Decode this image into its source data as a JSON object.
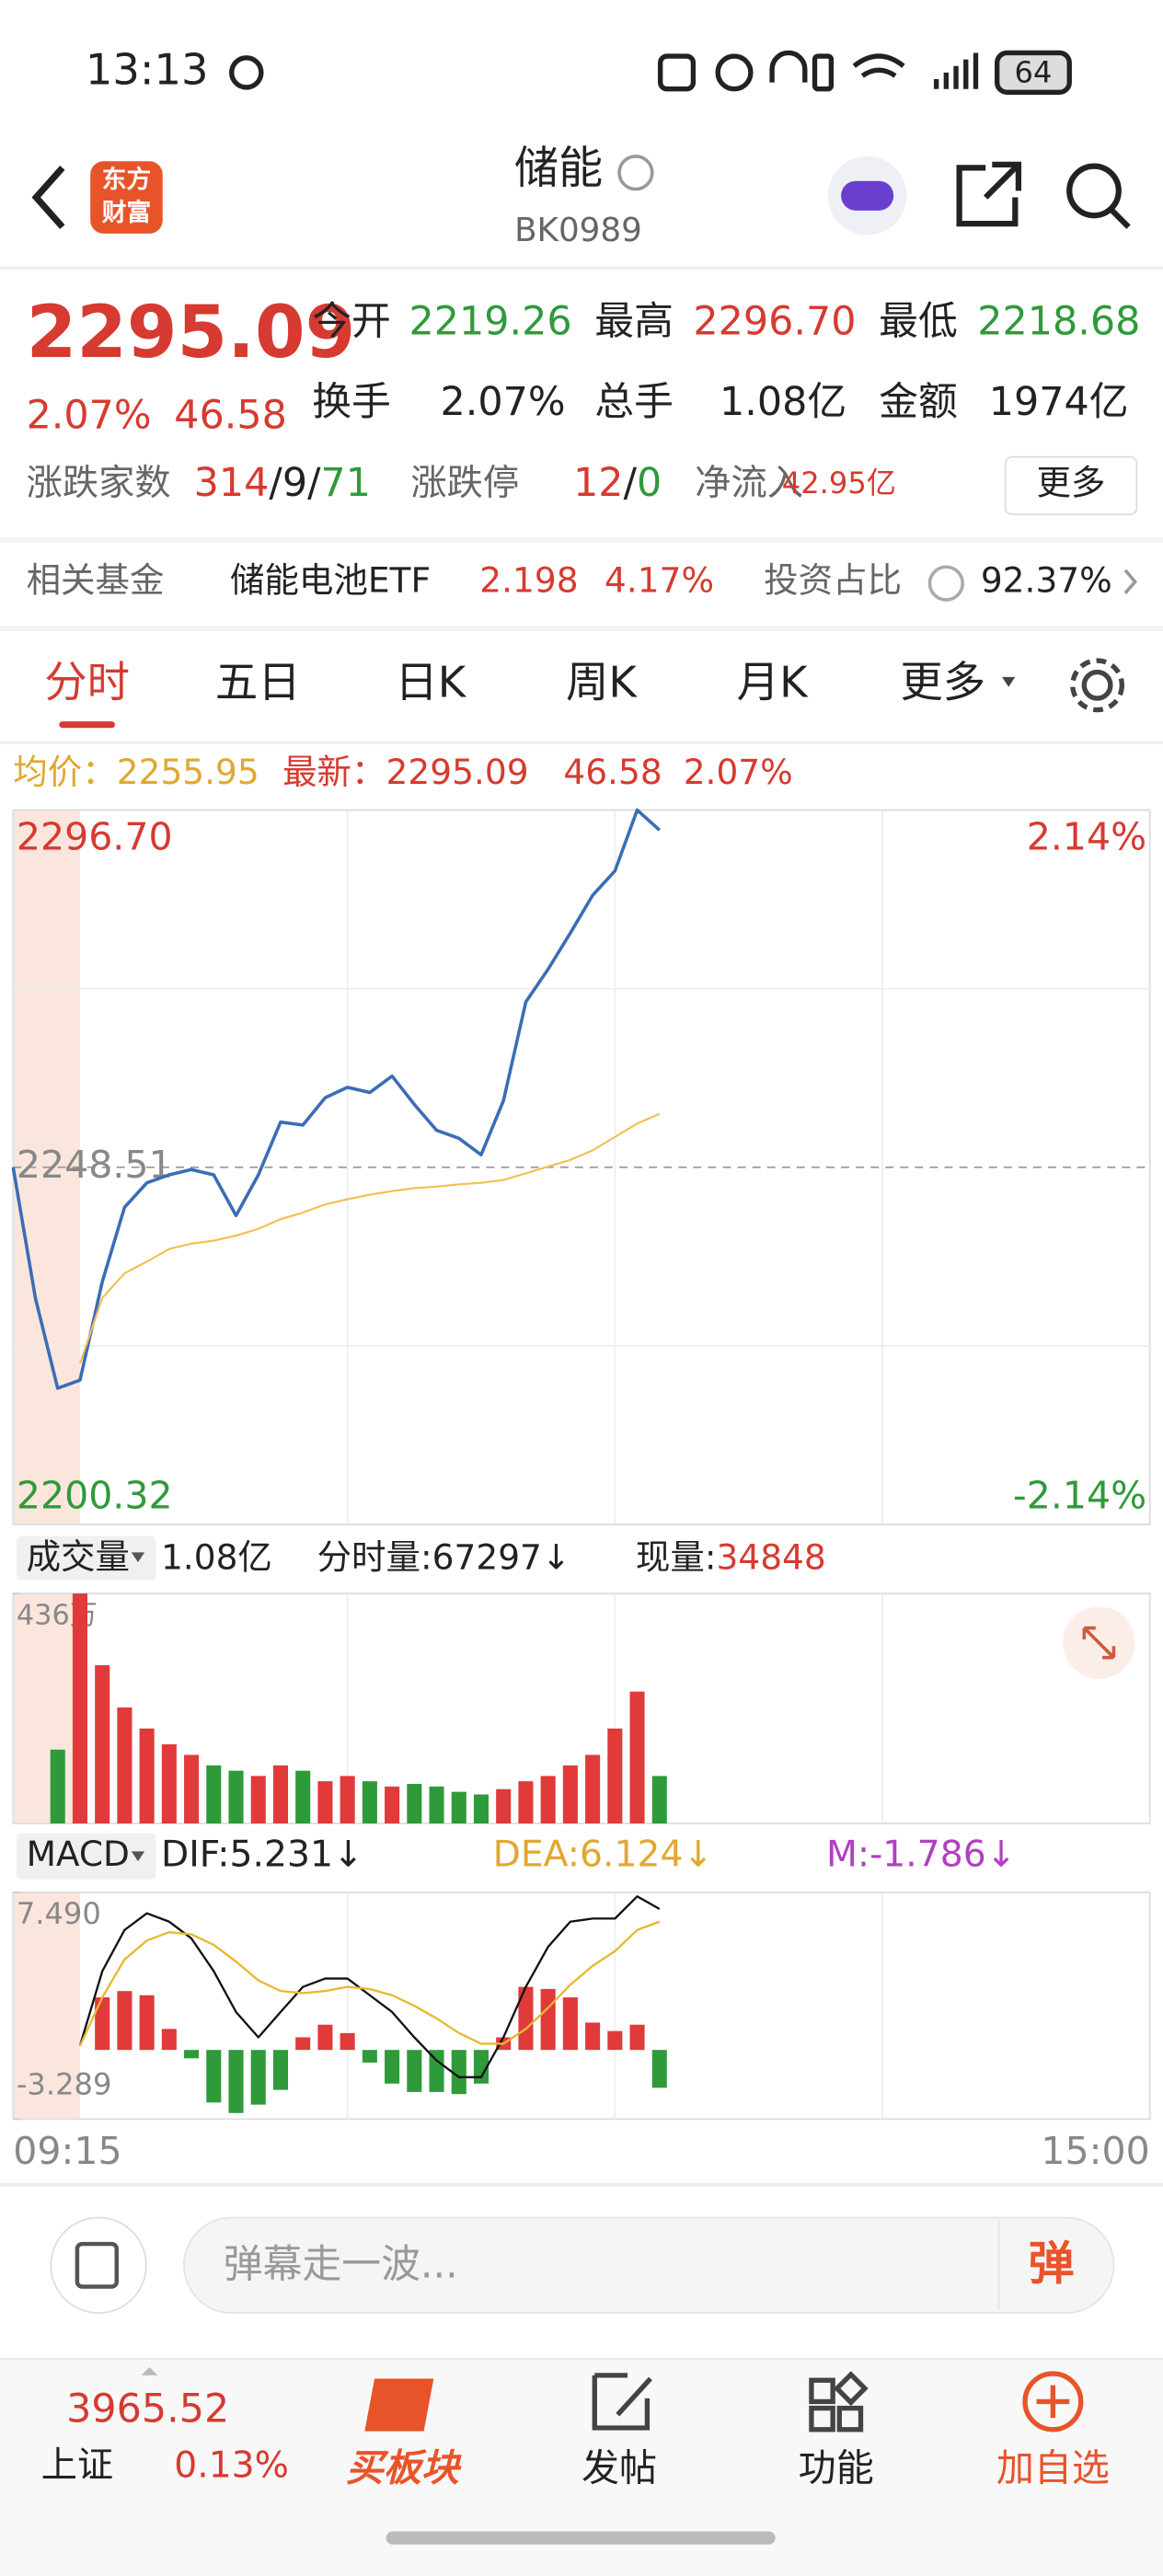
{
  "status_bar": {
    "time": "13:13",
    "battery": "64"
  },
  "header": {
    "logo": [
      "东方",
      "财富"
    ],
    "title": "储能",
    "code": "BK0989"
  },
  "quote": {
    "price": "2295.09",
    "change_pct": "2.07%",
    "change": "46.58",
    "fields": [
      {
        "label": "今开",
        "value": "2219.26"
      },
      {
        "label": "最高",
        "value": "2296.70"
      },
      {
        "label": "最低",
        "value": "2218.68"
      },
      {
        "label": "换手",
        "value": "2.07%"
      },
      {
        "label": "总手",
        "value": "1.08亿"
      },
      {
        "label": "金额",
        "value": "1974亿"
      }
    ],
    "breadth": {
      "label": "涨跌家数",
      "up": "314",
      "separator": "/",
      "flat": "9",
      "down": "71"
    },
    "limit": {
      "label": "涨跌停",
      "up": "12",
      "separator": "/",
      "down": "0"
    },
    "net_inflow": {
      "label": "净流入",
      "value": "42.95亿"
    },
    "more": "更多"
  },
  "fund": {
    "label": "相关基金",
    "name": "储能电池ETF",
    "price": "2.198",
    "change": "4.17%",
    "ratio_label": "投资占比",
    "ratio": "92.37%"
  },
  "tabs": [
    "分时",
    "五日",
    "日K",
    "周K",
    "月K",
    "更多"
  ],
  "summary": {
    "avg_label": "均价：",
    "avg": "2255.95",
    "last_label": "最新：",
    "last": "2295.09",
    "change": "46.58",
    "change_pct": "2.07%"
  },
  "volume_header": {
    "label": "成交量",
    "total": "1.08亿",
    "tick_volume": "分时量:67297↓",
    "current_label": "现量:",
    "current": "34848"
  },
  "macd_header": {
    "label": "MACD",
    "dif": "DIF:5.231↓",
    "dea": "DEA:6.124↓",
    "m": "M:-1.786↓"
  },
  "chart_data": [
    {
      "type": "line",
      "ylim": [
        2200.32,
        2296.7
      ],
      "yticks": [
        2200.32,
        2248.51,
        {
          "value": 2296.7,
          "label": "2296.70"
        }
      ],
      "y2lim": [
        -2.14,
        2.14
      ],
      "y2ticks": [
        {
          "value": -2.14,
          "label": "-2.14%"
        },
        {
          "value": 2.14,
          "label": "2.14%"
        }
      ],
      "series": [
        {
          "color": "#3a6db5",
          "values": [
            2248.5,
            2230.8,
            2218.7,
            2219.8,
            2233.1,
            2243.1,
            2246.4,
            2247.5,
            2248.2,
            2247.5,
            2242.0,
            2247.5,
            2254.6,
            2254.2,
            2257.9,
            2259.3,
            2258.6,
            2260.8,
            2257.0,
            2253.5,
            2252.4,
            2250.2,
            2257.5,
            2270.8,
            2275.2,
            2280.1,
            2285.2,
            2288.5,
            2296.7,
            2294.0
          ]
        },
        {
          "color": "#f0c050",
          "values": [
            null,
            null,
            null,
            2222.0,
            2230.9,
            2234.2,
            2235.8,
            2237.5,
            2238.2,
            2238.6,
            2239.3,
            2240.2,
            2241.5,
            2242.4,
            2243.5,
            2244.2,
            2244.8,
            2245.3,
            2245.7,
            2245.9,
            2246.2,
            2246.4,
            2246.8,
            2247.7,
            2248.6,
            2249.5,
            2250.8,
            2252.6,
            2254.4,
            2255.7
          ]
        }
      ]
    },
    {
      "type": "bar",
      "ylim": [
        0,
        436
      ],
      "yticks": [
        {
          "value": 436,
          "label": "436万"
        }
      ],
      "up_color": "#e03a3a",
      "down_color": "#2f9a3a",
      "values": [
        0,
        0,
        140,
        436,
        300,
        220,
        180,
        150,
        130,
        110,
        100,
        90,
        110,
        100,
        80,
        90,
        80,
        70,
        75,
        70,
        60,
        55,
        65,
        80,
        90,
        110,
        130,
        180,
        250,
        90
      ]
    },
    {
      "type": "macd",
      "ylim": [
        -3.289,
        7.49
      ],
      "yticks": [
        -3.289,
        {
          "value": 7.49,
          "label": "7.490"
        }
      ],
      "xticks": [
        "09:15",
        "15:00"
      ],
      "up_color": "#e03a3a",
      "down_color": "#2f9a3a",
      "series": [
        {
          "color": "#111111",
          "values": [
            null,
            null,
            null,
            0.2,
            3.75,
            5.7,
            6.5,
            6.1,
            5.3,
            3.75,
            1.8,
            0.6,
            1.8,
            3.0,
            3.4,
            3.4,
            2.6,
            1.8,
            0.6,
            -0.5,
            -1.3,
            -1.3,
            0.6,
            3.0,
            4.9,
            6.1,
            6.25,
            6.25,
            7.3,
            6.7
          ]
        },
        {
          "color": "#e8b830",
          "values": [
            null,
            null,
            null,
            0.2,
            2.5,
            4.3,
            5.2,
            5.6,
            5.5,
            5.0,
            4.2,
            3.3,
            2.8,
            2.7,
            2.8,
            3.0,
            2.9,
            2.6,
            2.1,
            1.5,
            0.8,
            0.3,
            0.3,
            1.0,
            2.0,
            3.1,
            4.0,
            4.7,
            5.7,
            6.1
          ]
        },
        {
          "values": [
            null,
            null,
            null,
            0,
            2.5,
            2.8,
            2.6,
            1.0,
            -0.4,
            -2.5,
            -3.0,
            -2.6,
            -1.9,
            0.6,
            1.2,
            0.8,
            -0.6,
            -1.6,
            -2.0,
            -2.0,
            -2.1,
            -1.6,
            0.6,
            3.0,
            2.9,
            2.5,
            1.3,
            0.9,
            1.2,
            -1.8
          ]
        }
      ]
    }
  ],
  "comment_bar": {
    "placeholder": "弹幕走一波...",
    "button": "弹"
  },
  "bottom_nav": {
    "index_value": "3965.52",
    "index_name": "上证",
    "index_change": "0.13%",
    "items": [
      "买板块",
      "发帖",
      "功能",
      "加自选"
    ]
  }
}
